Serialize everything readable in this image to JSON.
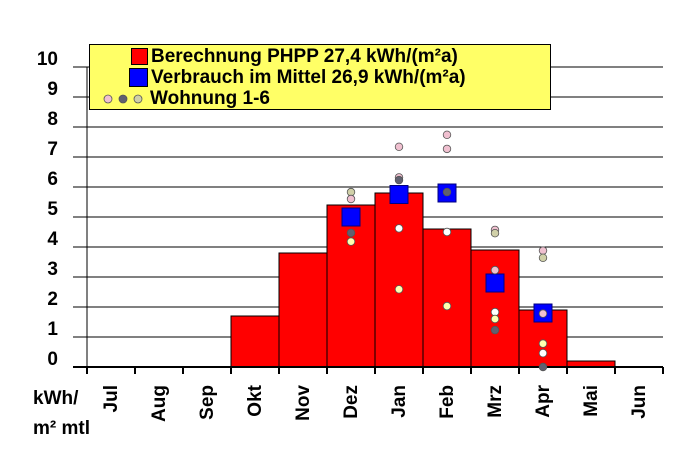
{
  "chart_data": {
    "type": "bar",
    "title": "",
    "ylabel": [
      "kWh/",
      "m² mtl"
    ],
    "ylim": [
      0,
      10
    ],
    "yticks": [
      0,
      1,
      2,
      3,
      4,
      5,
      6,
      7,
      8,
      9,
      10
    ],
    "grid": true,
    "legend_position": "top",
    "categories": [
      "Jul",
      "Aug",
      "Sep",
      "Okt",
      "Nov",
      "Dez",
      "Jan",
      "Feb",
      "Mrz",
      "Apr",
      "Mai",
      "Jun"
    ],
    "series": [
      {
        "name": "Berechnung PHPP 27,4 kWh/(m²a)",
        "type": "bar",
        "color": "#ff0000",
        "values": [
          0,
          0,
          0,
          1.7,
          3.8,
          5.4,
          5.8,
          4.6,
          3.9,
          1.9,
          0.2,
          0
        ]
      },
      {
        "name": "Verbrauch im Mittel 26,9 kWh/(m²a)",
        "type": "marker",
        "color": "#0000ff",
        "values": [
          null,
          null,
          null,
          null,
          null,
          5.0,
          5.75,
          5.8,
          2.8,
          1.8,
          null,
          null
        ]
      },
      {
        "name": "Wohnung 1-6",
        "type": "scatter",
        "points": [
          {
            "month": "Dez",
            "y": 5.83,
            "color": "#d0d0a8"
          },
          {
            "month": "Dez",
            "y": 5.6,
            "color": "#f0c0d0"
          },
          {
            "month": "Dez",
            "y": 4.47,
            "color": "#606070"
          },
          {
            "month": "Dez",
            "y": 4.18,
            "color": "#ffffb0"
          },
          {
            "month": "Jan",
            "y": 7.34,
            "color": "#f0c0d0"
          },
          {
            "month": "Jan",
            "y": 6.32,
            "color": "#f0c0d0"
          },
          {
            "month": "Jan",
            "y": 6.23,
            "color": "#606070"
          },
          {
            "month": "Jan",
            "y": 4.62,
            "color": "#ffffff"
          },
          {
            "month": "Jan",
            "y": 2.59,
            "color": "#ffffb0"
          },
          {
            "month": "Feb",
            "y": 7.74,
            "color": "#f0c0d0"
          },
          {
            "month": "Feb",
            "y": 7.27,
            "color": "#f0c0d0"
          },
          {
            "month": "Feb",
            "y": 5.83,
            "color": "#606070"
          },
          {
            "month": "Feb",
            "y": 4.5,
            "color": "#ffffff"
          },
          {
            "month": "Feb",
            "y": 2.03,
            "color": "#ffffb0"
          },
          {
            "month": "Mrz",
            "y": 4.57,
            "color": "#f0c0d0"
          },
          {
            "month": "Mrz",
            "y": 4.46,
            "color": "#d0d0a8"
          },
          {
            "month": "Mrz",
            "y": 3.23,
            "color": "#f0c0d0"
          },
          {
            "month": "Mrz",
            "y": 1.83,
            "color": "#ffffff"
          },
          {
            "month": "Mrz",
            "y": 1.6,
            "color": "#ffffb0"
          },
          {
            "month": "Mrz",
            "y": 1.23,
            "color": "#606070"
          },
          {
            "month": "Apr",
            "y": 3.88,
            "color": "#f0c0d0"
          },
          {
            "month": "Apr",
            "y": 3.64,
            "color": "#d0d0a8"
          },
          {
            "month": "Apr",
            "y": 1.78,
            "color": "#f0c0d0"
          },
          {
            "month": "Apr",
            "y": 0.78,
            "color": "#ffffb0"
          },
          {
            "month": "Apr",
            "y": 0.46,
            "color": "#ffffff"
          },
          {
            "month": "Apr",
            "y": 0.0,
            "color": "#606070"
          }
        ]
      }
    ],
    "legend_dot_colors": [
      "#f0c0d0",
      "#606070",
      "#d0d0a8"
    ]
  }
}
